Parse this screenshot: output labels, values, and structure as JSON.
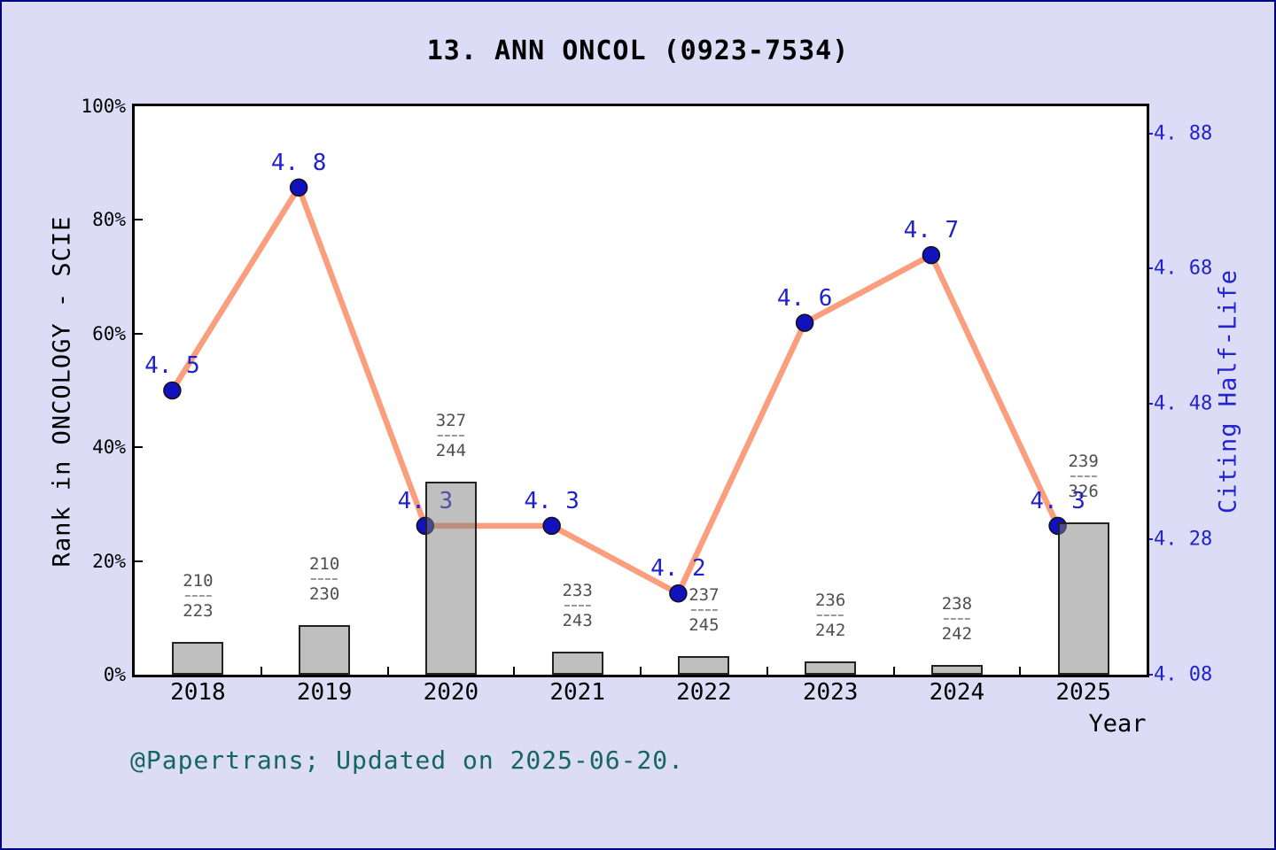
{
  "figure": {
    "title": "13.  ANN ONCOL (0923-7534)",
    "footer": "@Papertrans; Updated on 2025-06-20."
  },
  "chart_data": {
    "type": "bar+line combo",
    "categories": [
      "2018",
      "2019",
      "2020",
      "2021",
      "2022",
      "2023",
      "2024",
      "2025"
    ],
    "x_axis": {
      "label": "Year"
    },
    "left_axis": {
      "label": "Rank in ONCOLOGY - SCIE",
      "ticks": [
        "0%",
        "20%",
        "40%",
        "60%",
        "80%",
        "100%"
      ],
      "tick_values": [
        0,
        20,
        40,
        60,
        80,
        100
      ],
      "range": [
        0,
        100
      ]
    },
    "right_axis": {
      "label": "Citing Half-Life",
      "ticks": [
        "4. 08",
        "4. 28",
        "4. 48",
        "4. 68",
        "4. 88"
      ],
      "tick_values": [
        4.08,
        4.28,
        4.48,
        4.68,
        4.88
      ],
      "range": [
        4.08,
        4.92
      ]
    },
    "series": [
      {
        "name": "Rank in ONCOLOGY - SCIE",
        "type": "bar",
        "axis": "left",
        "values_pct": [
          5.8,
          8.7,
          34.0,
          4.1,
          3.3,
          2.4,
          1.7,
          26.8
        ],
        "fractions": [
          {
            "numerator": "210",
            "denominator": "223"
          },
          {
            "numerator": "210",
            "denominator": "230"
          },
          {
            "numerator": "327",
            "denominator": "244"
          },
          {
            "numerator": "233",
            "denominator": "243"
          },
          {
            "numerator": "237",
            "denominator": "245"
          },
          {
            "numerator": "236",
            "denominator": "242"
          },
          {
            "numerator": "238",
            "denominator": "242"
          },
          {
            "numerator": "239",
            "denominator": "326"
          }
        ]
      },
      {
        "name": "Citing Half-Life",
        "type": "line",
        "axis": "right",
        "values": [
          4.5,
          4.8,
          4.3,
          4.3,
          4.2,
          4.6,
          4.7,
          4.3
        ],
        "point_labels": [
          "4. 5",
          "4. 8",
          "4. 3",
          "4. 3",
          "4. 2",
          "4. 6",
          "4. 7",
          "4. 3"
        ]
      }
    ],
    "legend": "none",
    "grid": "off"
  },
  "colors": {
    "background": "#dcdcf6",
    "plot_background": "#ffffff",
    "figure_border": "#000085",
    "line": "#fa9e7d",
    "marker_fill": "#1212bd",
    "marker_edge": "#111111",
    "annotation_blue": "#2222cc",
    "bar_fill_rgba": "rgba(128,128,128,0.5)",
    "bar_edge": "#222222",
    "fraction_text": "#4f4f4f",
    "footer_text": "#166660",
    "axis_text": "#000000"
  }
}
